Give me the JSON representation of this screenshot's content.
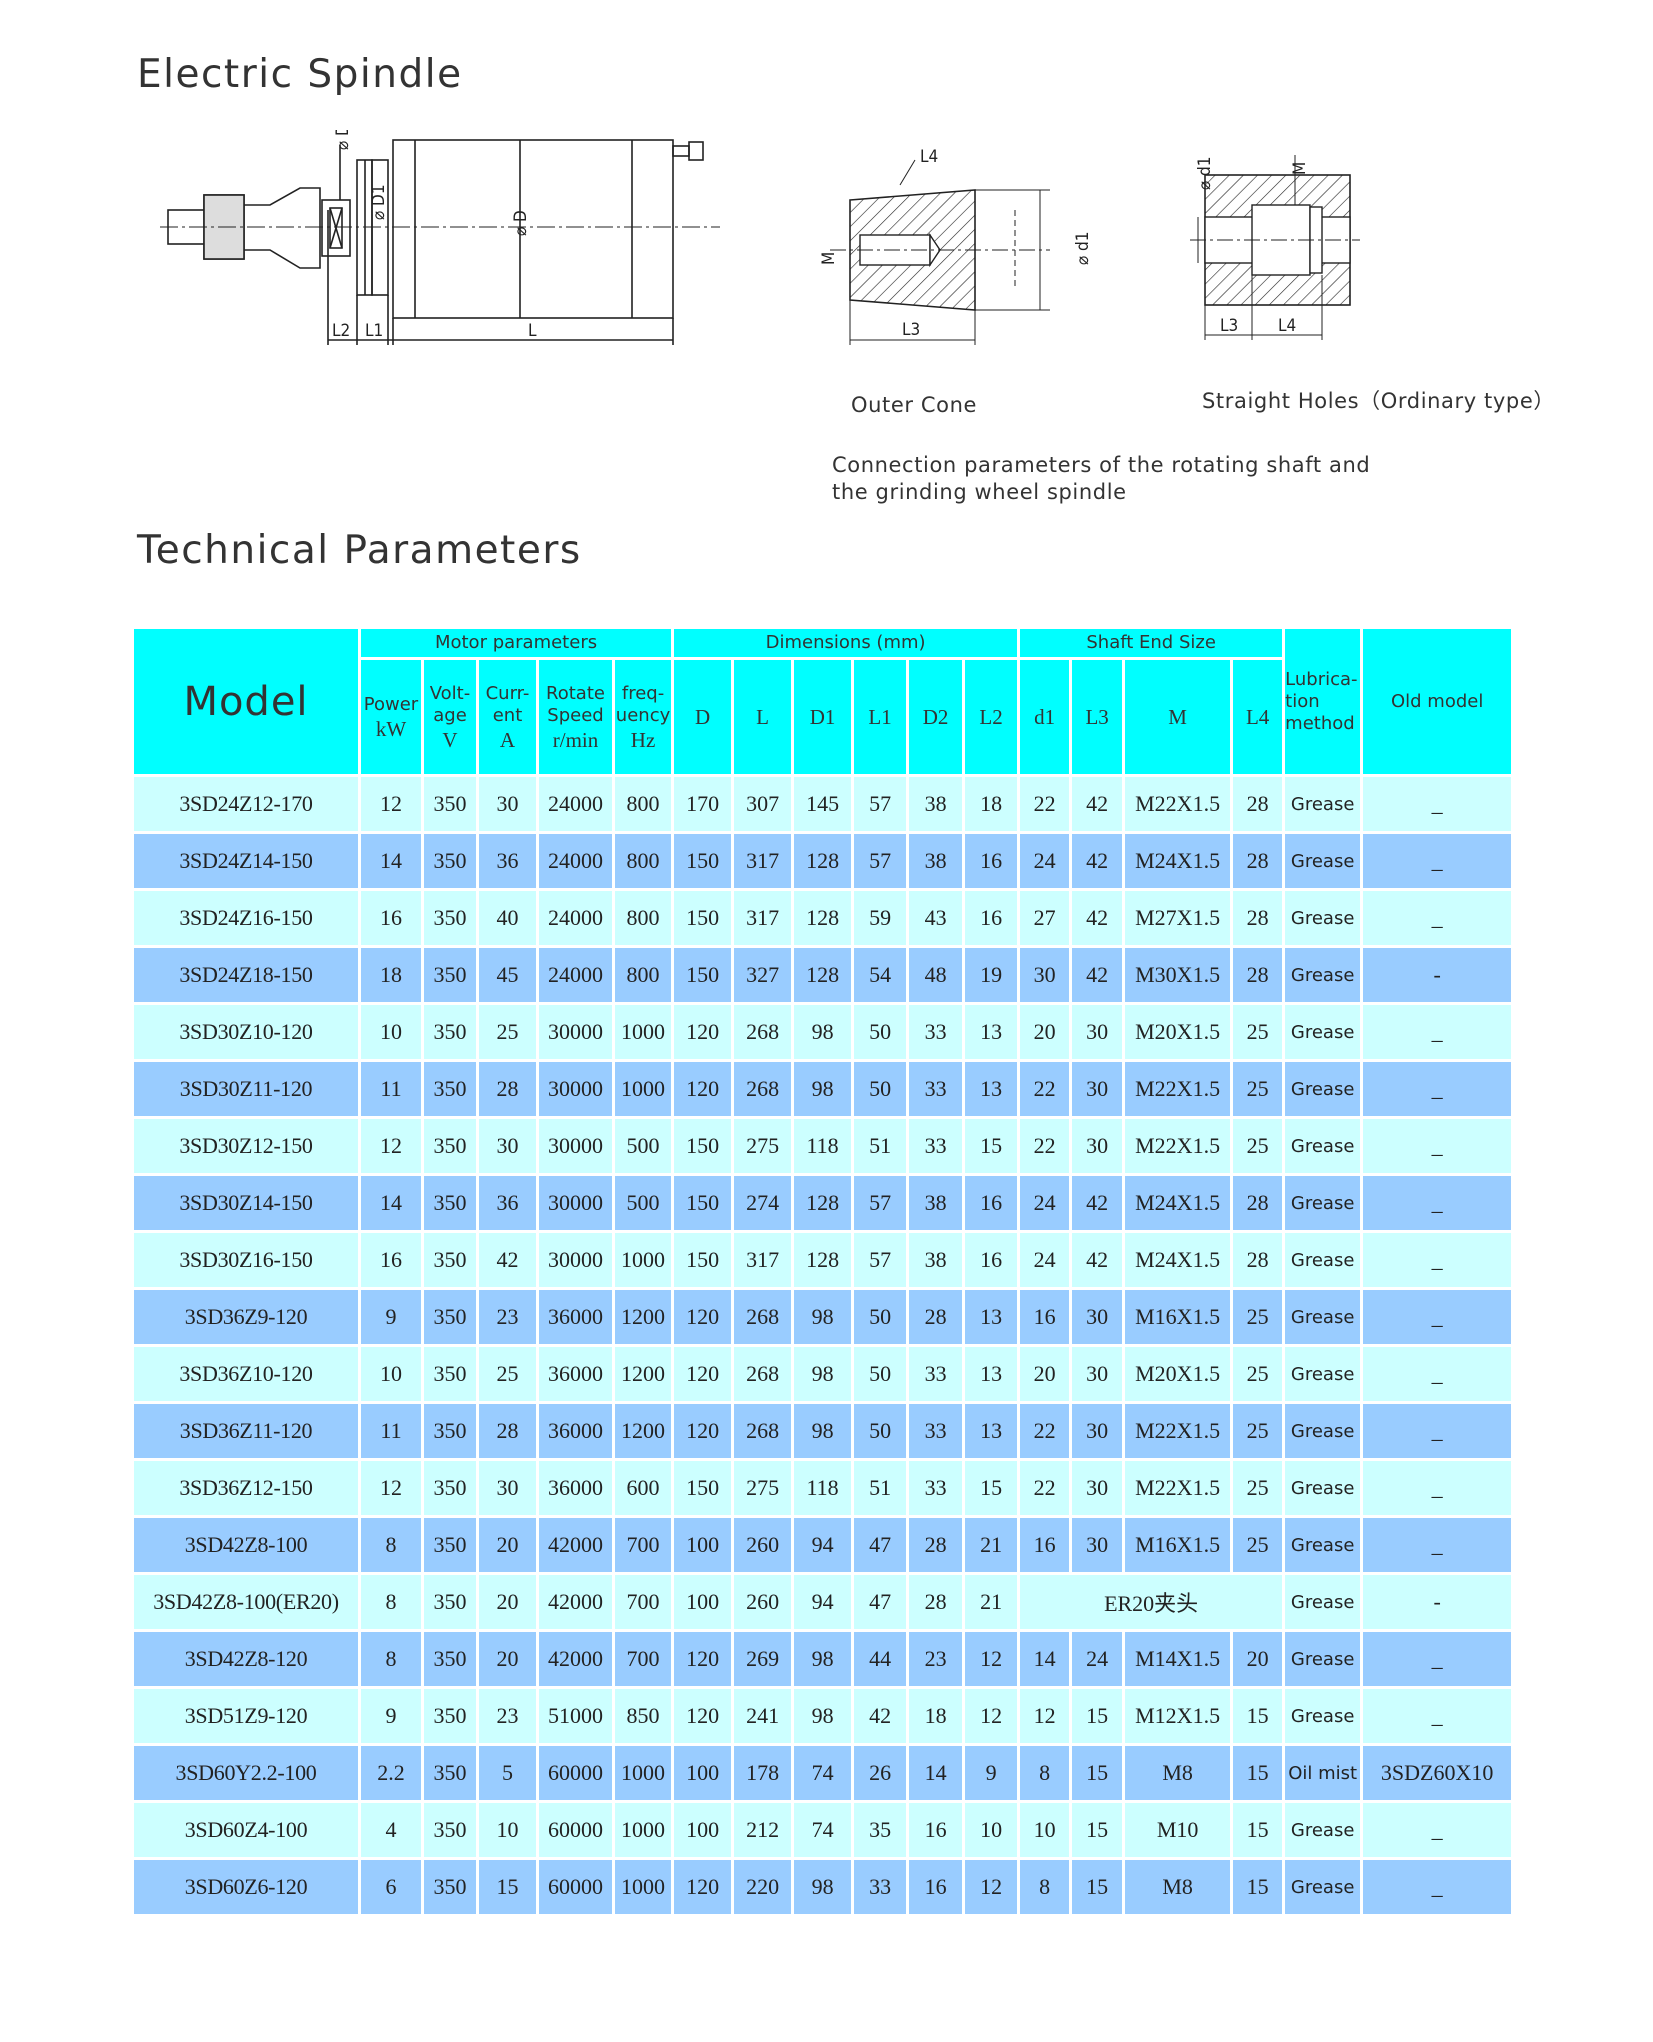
{
  "titles": {
    "electric_spindle": "Electric Spindle",
    "technical_parameters": "Technical Parameters"
  },
  "diagrams": {
    "spindle_labels": {
      "D2": "⌀ D2",
      "D1": "⌀ D1",
      "D": "⌀ D",
      "L2": "L2",
      "L1": "L1",
      "L": "L"
    },
    "outer_cone": {
      "caption": "Outer Cone",
      "L4": "L4",
      "M": "M",
      "L3": "L3",
      "d1": "⌀ d1"
    },
    "straight_holes": {
      "caption": "Straight Holes（Ordinary type）",
      "d1": "⌀ d1",
      "M": "M",
      "L3": "L3",
      "L4": "L4"
    },
    "connection_note_line1": "Connection parameters of the rotating shaft and",
    "connection_note_line2": "the grinding wheel spindle"
  },
  "colors": {
    "header": "#00ffff",
    "row_light": "#ccffff",
    "row_dark": "#99ccff"
  },
  "table": {
    "header": {
      "model": "Model",
      "motor_group": "Motor parameters",
      "dimensions_group": "Dimensions (mm)",
      "shaft_group": "Shaft End Size",
      "power": "Power",
      "power_unit": "kW",
      "voltage": "Volt-age",
      "voltage_unit": "V",
      "current": "Curr-ent",
      "current_unit": "A",
      "speed": "Rotate Speed",
      "speed_unit": "r/min",
      "frequency": "freq-uency",
      "frequency_unit": "Hz",
      "D": "D",
      "L": "L",
      "D1": "D1",
      "L1": "L1",
      "D2": "D2",
      "L2": "L2",
      "d1": "d1",
      "L3": "L3",
      "M": "M",
      "L4": "L4",
      "lubrication": "Lubrica-tion method",
      "old_model": "Old model"
    },
    "rows": [
      [
        "3SD24Z12-170",
        "12",
        "350",
        "30",
        "24000",
        "800",
        "170",
        "307",
        "145",
        "57",
        "38",
        "18",
        "22",
        "42",
        "M22X1.5",
        "28",
        "Grease",
        "_"
      ],
      [
        "3SD24Z14-150",
        "14",
        "350",
        "36",
        "24000",
        "800",
        "150",
        "317",
        "128",
        "57",
        "38",
        "16",
        "24",
        "42",
        "M24X1.5",
        "28",
        "Grease",
        "_"
      ],
      [
        "3SD24Z16-150",
        "16",
        "350",
        "40",
        "24000",
        "800",
        "150",
        "317",
        "128",
        "59",
        "43",
        "16",
        "27",
        "42",
        "M27X1.5",
        "28",
        "Grease",
        "_"
      ],
      [
        "3SD24Z18-150",
        "18",
        "350",
        "45",
        "24000",
        "800",
        "150",
        "327",
        "128",
        "54",
        "48",
        "19",
        "30",
        "42",
        "M30X1.5",
        "28",
        "Grease",
        "-"
      ],
      [
        "3SD30Z10-120",
        "10",
        "350",
        "25",
        "30000",
        "1000",
        "120",
        "268",
        "98",
        "50",
        "33",
        "13",
        "20",
        "30",
        "M20X1.5",
        "25",
        "Grease",
        "_"
      ],
      [
        "3SD30Z11-120",
        "11",
        "350",
        "28",
        "30000",
        "1000",
        "120",
        "268",
        "98",
        "50",
        "33",
        "13",
        "22",
        "30",
        "M22X1.5",
        "25",
        "Grease",
        "_"
      ],
      [
        "3SD30Z12-150",
        "12",
        "350",
        "30",
        "30000",
        "500",
        "150",
        "275",
        "118",
        "51",
        "33",
        "15",
        "22",
        "30",
        "M22X1.5",
        "25",
        "Grease",
        "_"
      ],
      [
        "3SD30Z14-150",
        "14",
        "350",
        "36",
        "30000",
        "500",
        "150",
        "274",
        "128",
        "57",
        "38",
        "16",
        "24",
        "42",
        "M24X1.5",
        "28",
        "Grease",
        "_"
      ],
      [
        "3SD30Z16-150",
        "16",
        "350",
        "42",
        "30000",
        "1000",
        "150",
        "317",
        "128",
        "57",
        "38",
        "16",
        "24",
        "42",
        "M24X1.5",
        "28",
        "Grease",
        "_"
      ],
      [
        "3SD36Z9-120",
        "9",
        "350",
        "23",
        "36000",
        "1200",
        "120",
        "268",
        "98",
        "50",
        "28",
        "13",
        "16",
        "30",
        "M16X1.5",
        "25",
        "Grease",
        "_"
      ],
      [
        "3SD36Z10-120",
        "10",
        "350",
        "25",
        "36000",
        "1200",
        "120",
        "268",
        "98",
        "50",
        "33",
        "13",
        "20",
        "30",
        "M20X1.5",
        "25",
        "Grease",
        "_"
      ],
      [
        "3SD36Z11-120",
        "11",
        "350",
        "28",
        "36000",
        "1200",
        "120",
        "268",
        "98",
        "50",
        "33",
        "13",
        "22",
        "30",
        "M22X1.5",
        "25",
        "Grease",
        "_"
      ],
      [
        "3SD36Z12-150",
        "12",
        "350",
        "30",
        "36000",
        "600",
        "150",
        "275",
        "118",
        "51",
        "33",
        "15",
        "22",
        "30",
        "M22X1.5",
        "25",
        "Grease",
        "_"
      ],
      [
        "3SD42Z8-100",
        "8",
        "350",
        "20",
        "42000",
        "700",
        "100",
        "260",
        "94",
        "47",
        "28",
        "21",
        "16",
        "30",
        "M16X1.5",
        "25",
        "Grease",
        "_"
      ],
      [
        "3SD42Z8-100(ER20)",
        "8",
        "350",
        "20",
        "42000",
        "700",
        "100",
        "260",
        "94",
        "47",
        "28",
        "21",
        "ER20夹头",
        "Grease",
        "-"
      ],
      [
        "3SD42Z8-120",
        "8",
        "350",
        "20",
        "42000",
        "700",
        "120",
        "269",
        "98",
        "44",
        "23",
        "12",
        "14",
        "24",
        "M14X1.5",
        "20",
        "Grease",
        "_"
      ],
      [
        "3SD51Z9-120",
        "9",
        "350",
        "23",
        "51000",
        "850",
        "120",
        "241",
        "98",
        "42",
        "18",
        "12",
        "12",
        "15",
        "M12X1.5",
        "15",
        "Grease",
        "_"
      ],
      [
        "3SD60Y2.2-100",
        "2.2",
        "350",
        "5",
        "60000",
        "1000",
        "100",
        "178",
        "74",
        "26",
        "14",
        "9",
        "8",
        "15",
        "M8",
        "15",
        "Oil mist",
        "3SDZ60X10"
      ],
      [
        "3SD60Z4-100",
        "4",
        "350",
        "10",
        "60000",
        "1000",
        "100",
        "212",
        "74",
        "35",
        "16",
        "10",
        "10",
        "15",
        "M10",
        "15",
        "Grease",
        "_"
      ],
      [
        "3SD60Z6-120",
        "6",
        "350",
        "15",
        "60000",
        "1000",
        "120",
        "220",
        "98",
        "33",
        "16",
        "12",
        "8",
        "15",
        "M8",
        "15",
        "Grease",
        "_"
      ]
    ]
  }
}
